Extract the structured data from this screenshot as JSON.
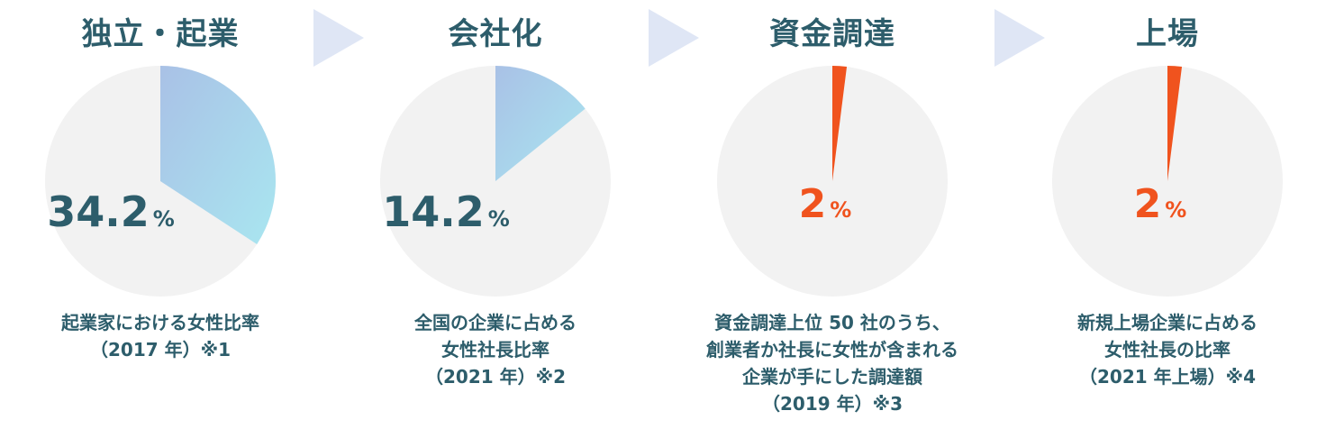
{
  "chart_data": [
    {
      "type": "pie",
      "title": "独立・起業",
      "value": 34.2,
      "unit": "%",
      "value_number": "34.2",
      "caption_lines": [
        "起業家における女性比率",
        "（2017 年）※1"
      ],
      "colors": {
        "fill_start": "#a9c1e6",
        "fill_end": "#a9e6f0",
        "background": "#f2f2f2",
        "label": "#2d5d6b"
      }
    },
    {
      "type": "pie",
      "title": "会社化",
      "value": 14.2,
      "unit": "%",
      "value_number": "14.2",
      "caption_lines": [
        "全国の企業に占める",
        "女性社長比率",
        "（2021 年）※2"
      ],
      "colors": {
        "fill_start": "#a9c1e6",
        "fill_end": "#a9e6f0",
        "background": "#f2f2f2",
        "label": "#2d5d6b"
      }
    },
    {
      "type": "pie",
      "title": "資金調達",
      "value": 2,
      "unit": "%",
      "value_number": "2",
      "caption_lines": [
        "資金調達上位 50 社のうち、",
        "創業者か社長に女性が含まれる",
        "企業が手にした調達額",
        "（2019 年）※3"
      ],
      "colors": {
        "fill_start": "#f0531e",
        "fill_end": "#f0531e",
        "background": "#f2f2f2",
        "label": "#f0531e"
      }
    },
    {
      "type": "pie",
      "title": "上場",
      "value": 2,
      "unit": "%",
      "value_number": "2",
      "caption_lines": [
        "新規上場企業に占める",
        "女性社長の比率",
        "（2021 年上場）※4"
      ],
      "colors": {
        "fill_start": "#f0531e",
        "fill_end": "#f0531e",
        "background": "#f2f2f2",
        "label": "#f0531e"
      }
    }
  ],
  "arrow_icon": "triangle-right-arrow-icon",
  "arrow_color": "#dfe6f5",
  "title_color": "#2d5d6b"
}
